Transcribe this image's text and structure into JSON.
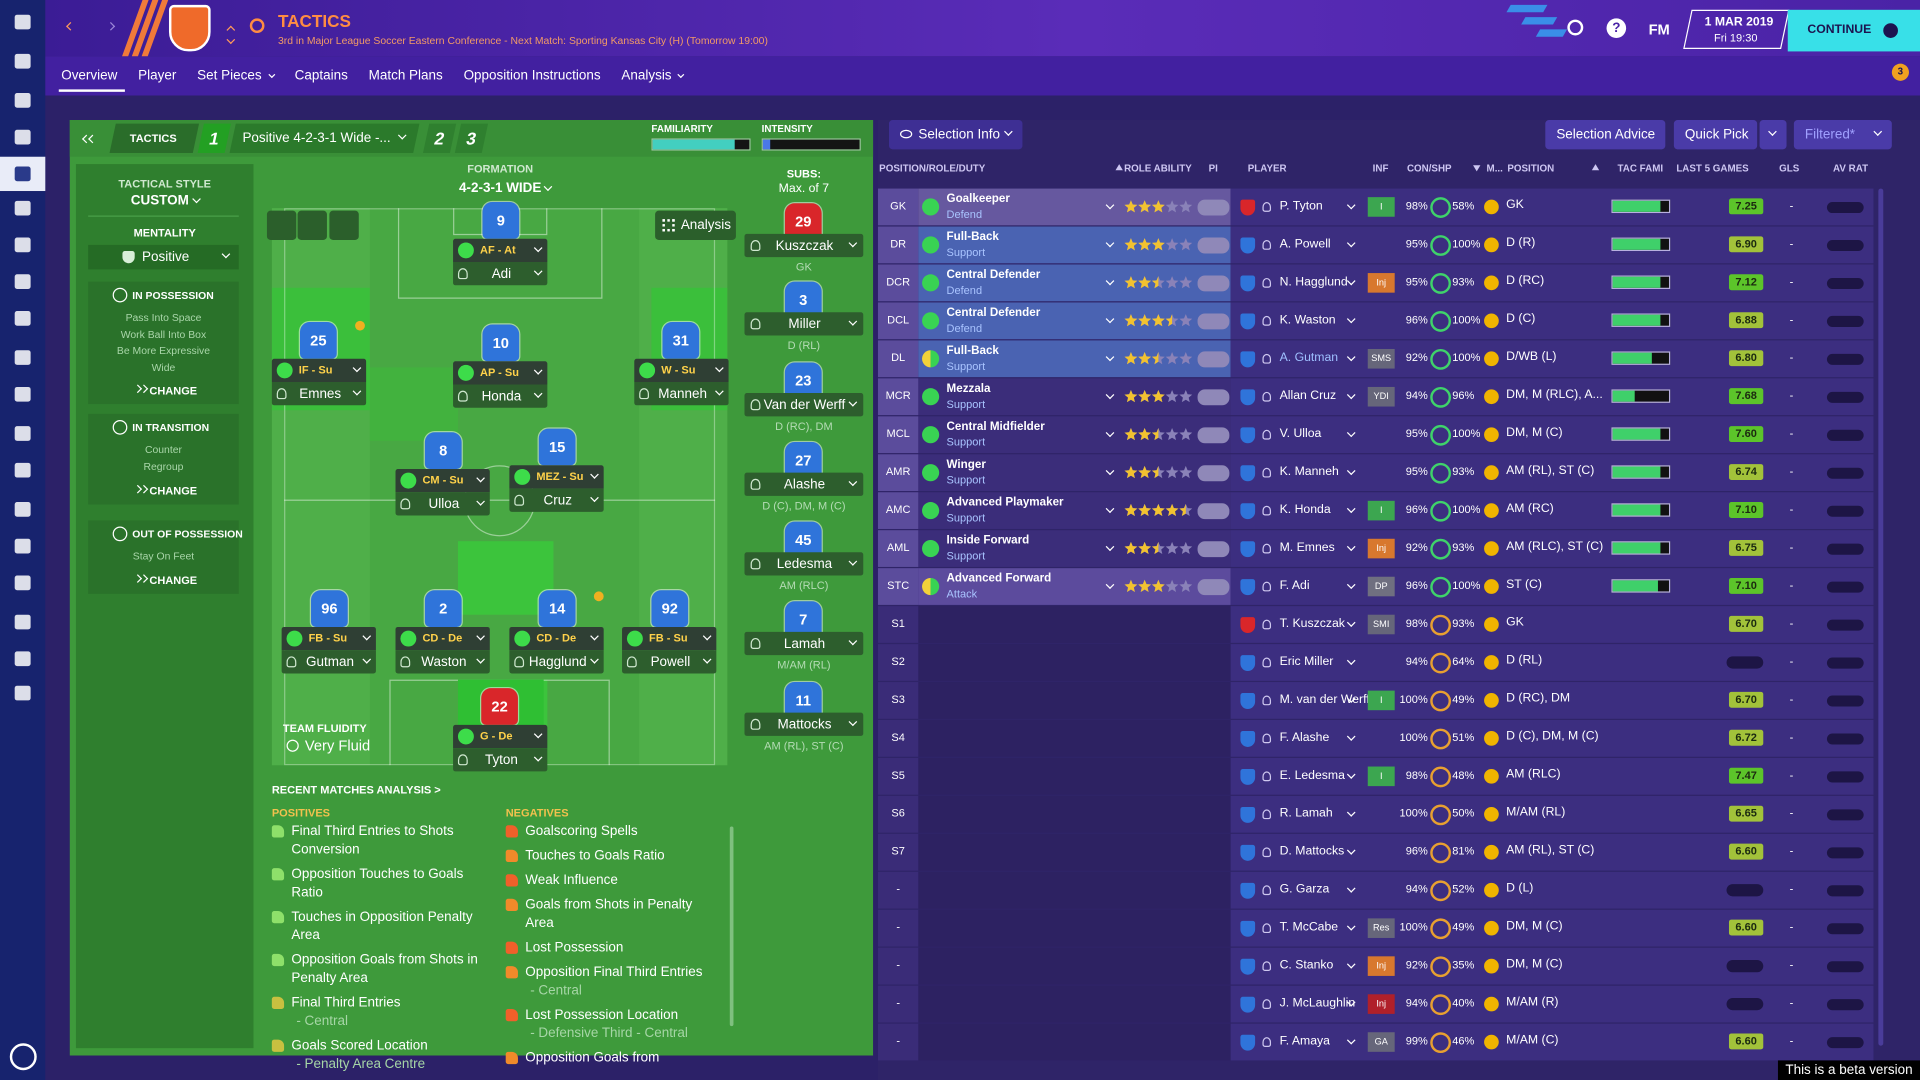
{
  "header": {
    "title": "TACTICS",
    "subtitle": "3rd in Major League Soccer Eastern Conference - Next Match: Sporting Kansas City (H) (Tomorrow 19:00)",
    "help": "?",
    "fm": "FM",
    "date": "1 MAR 2019",
    "time": "Fri 19:30",
    "continue": "CONTINUE",
    "notifications": "3"
  },
  "tabs": [
    "Overview",
    "Player",
    "Set Pieces",
    "Captains",
    "Match Plans",
    "Opposition Instructions",
    "Analysis"
  ],
  "tactics_bar": {
    "label": "TACTICS",
    "slots": [
      "1",
      "2",
      "3"
    ],
    "tactic": "Positive 4-2-3-1 Wide -...",
    "familiarity": "FAMILIARITY",
    "familiarity_level": 0.85,
    "intensity": "INTENSITY",
    "intensity_level": 0.08
  },
  "style_panel": {
    "style_label": "TACTICAL STYLE",
    "style": "CUSTOM",
    "mentality_label": "MENTALITY",
    "mentality": "Positive",
    "phases": [
      {
        "title": "IN POSSESSION",
        "items": [
          "Pass Into Space",
          "Work Ball Into Box",
          "Be More Expressive",
          "Wide"
        ],
        "action": "CHANGE"
      },
      {
        "title": "IN TRANSITION",
        "items": [
          "Counter",
          "Regroup"
        ],
        "action": "CHANGE"
      },
      {
        "title": "OUT OF POSSESSION",
        "items": [
          "Stay On Feet"
        ],
        "action": "CHANGE"
      }
    ]
  },
  "formation": {
    "label": "FORMATION",
    "name": "4-2-3-1 WIDE",
    "analysis": "Analysis",
    "players": [
      {
        "number": 9,
        "role": "AF - At",
        "name": "Adi"
      },
      {
        "number": 25,
        "role": "IF - Su",
        "name": "Emnes"
      },
      {
        "number": 10,
        "role": "AP - Su",
        "name": "Honda"
      },
      {
        "number": 31,
        "role": "W - Su",
        "name": "Manneh"
      },
      {
        "number": 8,
        "role": "CM - Su",
        "name": "Ulloa"
      },
      {
        "number": 15,
        "role": "MEZ - Su",
        "name": "Cruz"
      },
      {
        "number": 96,
        "role": "FB - Su",
        "name": "Gutman"
      },
      {
        "number": 2,
        "role": "CD - De",
        "name": "Waston"
      },
      {
        "number": 14,
        "role": "CD - De",
        "name": "Hagglund"
      },
      {
        "number": 92,
        "role": "FB - Su",
        "name": "Powell"
      },
      {
        "number": 22,
        "role": "G - De",
        "name": "Tyton"
      }
    ]
  },
  "subs": {
    "label": "SUBS:",
    "limit": "Max. of 7",
    "players": [
      {
        "number": 29,
        "name": "Kuszczak",
        "position": "GK"
      },
      {
        "number": 3,
        "name": "Miller",
        "position": "D (RL)"
      },
      {
        "number": 23,
        "name": "Van der Werff",
        "position": "D (RC), DM"
      },
      {
        "number": 27,
        "name": "Alashe",
        "position": "D (C), DM, M (C)"
      },
      {
        "number": 45,
        "name": "Ledesma",
        "position": "AM (RLC)"
      },
      {
        "number": 7,
        "name": "Lamah",
        "position": "M/AM (RL)"
      },
      {
        "number": 11,
        "name": "Mattocks",
        "position": "AM (RL), ST (C)"
      }
    ]
  },
  "fluidity": {
    "label": "TEAM FLUIDITY",
    "value": "Very Fluid"
  },
  "analysis": {
    "title": "RECENT MATCHES ANALYSIS >",
    "positives_label": "POSITIVES",
    "negatives_label": "NEGATIVES",
    "positives": [
      {
        "text": "Final Third Entries to Shots Conversion"
      },
      {
        "text": "Opposition Touches to Goals Ratio"
      },
      {
        "text": "Touches in Opposition Penalty Area"
      },
      {
        "text": "Opposition Goals from Shots in Penalty Area"
      },
      {
        "text": "Final Third Entries",
        "sub": "- Central"
      },
      {
        "text": "Goals Scored Location",
        "sub": "- Penalty Area Centre"
      }
    ],
    "negatives": [
      {
        "text": "Goalscoring Spells"
      },
      {
        "text": "Touches to Goals Ratio"
      },
      {
        "text": "Weak Influence"
      },
      {
        "text": "Goals from Shots in Penalty Area"
      },
      {
        "text": "Lost Possession"
      },
      {
        "text": "Opposition Final Third Entries",
        "sub": "- Central"
      },
      {
        "text": "Lost Possession Location",
        "sub": "- Defensive Third - Central"
      },
      {
        "text": "Opposition Goals from"
      }
    ]
  },
  "selection": {
    "buttons": [
      "Selection Info",
      "Selection Advice",
      "Quick Pick",
      "Filtered*"
    ],
    "columns": [
      "POSITION/ROLE/DUTY",
      "ROLE ABILITY",
      "PI",
      "PLAYER",
      "INF",
      "CON/SHP",
      "M...",
      "POSITION",
      "TAC FAMI",
      "LAST 5 GAMES",
      "GLS",
      "AV RAT"
    ],
    "rows": [
      {
        "slot": "GK",
        "role": "Goalkeeper",
        "duty": "Defend",
        "ability": 3,
        "player": "P. Tyton",
        "inf": "I",
        "con": "98%",
        "shp": "58%",
        "position": "GK",
        "tac_fami": 0.85,
        "rating": "7.25",
        "gls": "-"
      },
      {
        "slot": "DR",
        "role": "Full-Back",
        "duty": "Support",
        "ability": 3,
        "player": "A. Powell",
        "con": "95%",
        "shp": "100%",
        "position": "D (R)",
        "tac_fami": 0.85,
        "rating": "6.90",
        "gls": "-"
      },
      {
        "slot": "DCR",
        "role": "Central Defender",
        "duty": "Defend",
        "ability": 2.5,
        "player": "N. Hagglund",
        "inf": "Inj",
        "con": "95%",
        "shp": "93%",
        "position": "D (RC)",
        "tac_fami": 0.85,
        "rating": "7.12",
        "gls": "-"
      },
      {
        "slot": "DCL",
        "role": "Central Defender",
        "duty": "Defend",
        "ability": 3.5,
        "player": "K. Waston",
        "con": "96%",
        "shp": "100%",
        "position": "D (C)",
        "tac_fami": 0.85,
        "rating": "6.88",
        "gls": "-"
      },
      {
        "slot": "DL",
        "role": "Full-Back",
        "duty": "Support",
        "ability": 2.5,
        "player": "A. Gutman",
        "inf": "SMS",
        "con": "92%",
        "shp": "100%",
        "position": "D/WB (L)",
        "tac_fami": 0.7,
        "rating": "6.80",
        "gls": "-"
      },
      {
        "slot": "MCR",
        "role": "Mezzala",
        "duty": "Support",
        "ability": 3,
        "player": "Allan Cruz",
        "inf": "YDI",
        "con": "94%",
        "shp": "96%",
        "position": "DM, M (RLC), A...",
        "tac_fami": 0.4,
        "rating": "7.68",
        "gls": "-"
      },
      {
        "slot": "MCL",
        "role": "Central Midfielder",
        "duty": "Support",
        "ability": 2.5,
        "player": "V. Ulloa",
        "con": "95%",
        "shp": "100%",
        "position": "DM, M (C)",
        "tac_fami": 0.85,
        "rating": "7.60",
        "gls": "-"
      },
      {
        "slot": "AMR",
        "role": "Winger",
        "duty": "Support",
        "ability": 2.5,
        "player": "K. Manneh",
        "con": "95%",
        "shp": "93%",
        "position": "AM (RL), ST (C)",
        "tac_fami": 0.85,
        "rating": "6.74",
        "gls": "-"
      },
      {
        "slot": "AMC",
        "role": "Advanced Playmaker",
        "duty": "Support",
        "ability": 4.5,
        "player": "K. Honda",
        "inf": "I",
        "con": "96%",
        "shp": "100%",
        "position": "AM (RC)",
        "tac_fami": 0.85,
        "rating": "7.10",
        "gls": "-"
      },
      {
        "slot": "AML",
        "role": "Inside Forward",
        "duty": "Support",
        "ability": 2.5,
        "player": "M. Emnes",
        "inf": "Inj",
        "con": "92%",
        "shp": "93%",
        "position": "AM (RLC), ST (C)",
        "tac_fami": 0.85,
        "rating": "6.75",
        "gls": "-"
      },
      {
        "slot": "STC",
        "role": "Advanced Forward",
        "duty": "Attack",
        "ability": 3,
        "player": "F. Adi",
        "inf": "DP",
        "con": "96%",
        "shp": "100%",
        "position": "ST (C)",
        "tac_fami": 0.8,
        "rating": "7.10",
        "gls": "-"
      },
      {
        "slot": "S1",
        "player": "T. Kuszczak",
        "inf": "SMI",
        "con": "98%",
        "shp": "93%",
        "position": "GK",
        "rating": "6.70",
        "gls": "-"
      },
      {
        "slot": "S2",
        "player": "Eric Miller",
        "con": "94%",
        "shp": "64%",
        "position": "D (RL)",
        "gls": "-"
      },
      {
        "slot": "S3",
        "player": "M. van der Werff",
        "inf": "I",
        "con": "100%",
        "shp": "49%",
        "position": "D (RC), DM",
        "rating": "6.70",
        "gls": "-"
      },
      {
        "slot": "S4",
        "player": "F. Alashe",
        "con": "100%",
        "shp": "51%",
        "position": "D (C), DM, M (C)",
        "rating": "6.72",
        "gls": "-"
      },
      {
        "slot": "S5",
        "player": "E. Ledesma",
        "inf": "I",
        "con": "98%",
        "shp": "48%",
        "position": "AM (RLC)",
        "rating": "7.47",
        "gls": "-"
      },
      {
        "slot": "S6",
        "player": "R. Lamah",
        "con": "100%",
        "shp": "50%",
        "position": "M/AM (RL)",
        "rating": "6.65",
        "gls": "-"
      },
      {
        "slot": "S7",
        "player": "D. Mattocks",
        "con": "96%",
        "shp": "81%",
        "position": "AM (RL), ST (C)",
        "rating": "6.60",
        "gls": "-"
      },
      {
        "slot": "-",
        "player": "G. Garza",
        "con": "94%",
        "shp": "52%",
        "position": "D (L)",
        "gls": "-"
      },
      {
        "slot": "-",
        "player": "T. McCabe",
        "inf": "Res",
        "con": "100%",
        "shp": "49%",
        "position": "DM, M (C)",
        "rating": "6.60",
        "gls": "-"
      },
      {
        "slot": "-",
        "player": "C. Stanko",
        "inf": "Inj",
        "con": "92%",
        "shp": "35%",
        "position": "DM, M (C)",
        "gls": "-"
      },
      {
        "slot": "-",
        "player": "J. McLaughlin",
        "inf": "Inj",
        "con": "94%",
        "shp": "40%",
        "position": "M/AM (R)",
        "gls": "-"
      },
      {
        "slot": "-",
        "player": "F. Amaya",
        "inf": "GA",
        "con": "99%",
        "shp": "46%",
        "position": "M/AM (C)",
        "rating": "6.60",
        "gls": "-"
      }
    ]
  },
  "footer": "This is a beta version"
}
